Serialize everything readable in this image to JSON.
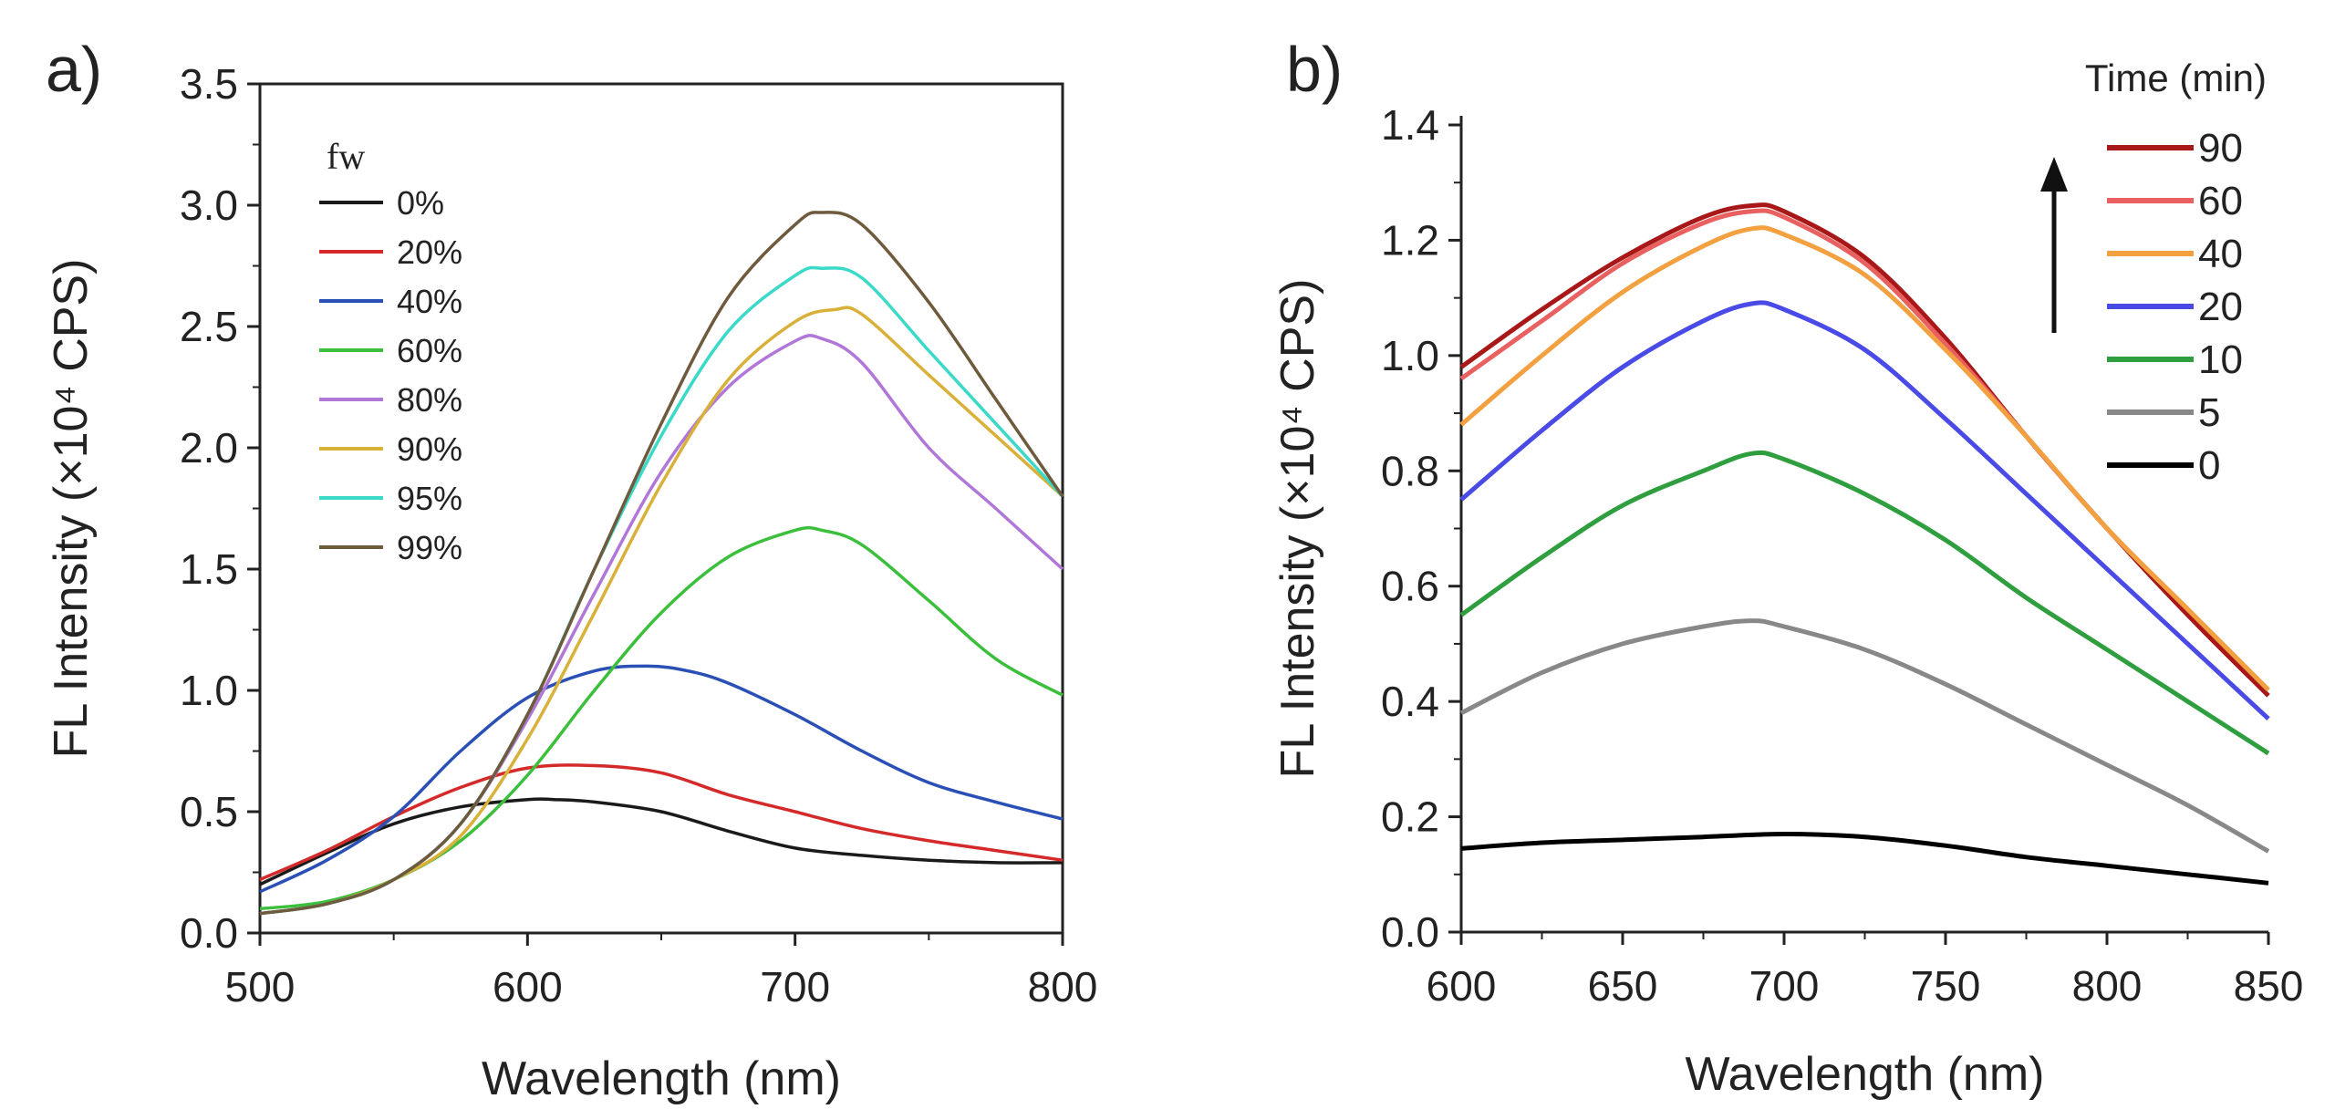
{
  "chart_data": [
    {
      "type": "line",
      "panel_label": "a)",
      "xlabel": "Wavelength (nm)",
      "ylabel": "FL Intensity (×10⁴ CPS)",
      "xlim": [
        500,
        800
      ],
      "ylim": [
        0,
        3.5
      ],
      "xticks": [
        500,
        600,
        700,
        800
      ],
      "yticks": [
        0.0,
        0.5,
        1.0,
        1.5,
        2.0,
        2.5,
        3.0,
        3.5
      ],
      "xtick_labels": [
        "500",
        "600",
        "700",
        "800"
      ],
      "ytick_labels": [
        "0.0",
        "0.5",
        "1.0",
        "1.5",
        "2.0",
        "2.5",
        "3.0",
        "3.5"
      ],
      "legend_title": "fw",
      "legend_position": "top-left",
      "series": [
        {
          "name": "0%",
          "color": "#1a1a1a",
          "x": [
            500,
            525,
            550,
            575,
            600,
            610,
            625,
            650,
            675,
            700,
            725,
            750,
            775,
            800
          ],
          "y": [
            0.2,
            0.33,
            0.45,
            0.52,
            0.55,
            0.55,
            0.54,
            0.5,
            0.42,
            0.35,
            0.32,
            0.3,
            0.29,
            0.29
          ]
        },
        {
          "name": "20%",
          "color": "#d42a2a",
          "x": [
            500,
            525,
            550,
            575,
            600,
            625,
            650,
            675,
            700,
            725,
            750,
            775,
            800
          ],
          "y": [
            0.22,
            0.34,
            0.48,
            0.6,
            0.68,
            0.69,
            0.66,
            0.57,
            0.5,
            0.43,
            0.38,
            0.34,
            0.3
          ]
        },
        {
          "name": "40%",
          "color": "#2a4fb5",
          "x": [
            500,
            525,
            550,
            575,
            600,
            625,
            645,
            660,
            675,
            700,
            725,
            750,
            775,
            800
          ],
          "y": [
            0.17,
            0.3,
            0.48,
            0.75,
            0.97,
            1.08,
            1.1,
            1.08,
            1.03,
            0.9,
            0.75,
            0.62,
            0.54,
            0.47
          ]
        },
        {
          "name": "60%",
          "color": "#3cbf3c",
          "x": [
            500,
            525,
            550,
            575,
            600,
            625,
            650,
            675,
            700,
            710,
            725,
            750,
            775,
            800
          ],
          "y": [
            0.1,
            0.13,
            0.22,
            0.38,
            0.65,
            1.0,
            1.32,
            1.55,
            1.66,
            1.66,
            1.6,
            1.37,
            1.13,
            0.98
          ]
        },
        {
          "name": "80%",
          "color": "#b077d8",
          "x": [
            500,
            525,
            550,
            575,
            600,
            625,
            650,
            675,
            700,
            710,
            725,
            750,
            775,
            800
          ],
          "y": [
            0.08,
            0.12,
            0.22,
            0.45,
            0.88,
            1.4,
            1.9,
            2.25,
            2.44,
            2.45,
            2.35,
            2.0,
            1.75,
            1.5
          ]
        },
        {
          "name": "90%",
          "color": "#d9b13a",
          "x": [
            500,
            525,
            550,
            575,
            600,
            625,
            650,
            675,
            700,
            715,
            725,
            750,
            775,
            800
          ],
          "y": [
            0.08,
            0.12,
            0.22,
            0.4,
            0.8,
            1.32,
            1.85,
            2.28,
            2.52,
            2.57,
            2.55,
            2.3,
            2.05,
            1.8
          ]
        },
        {
          "name": "95%",
          "color": "#3ad9c8",
          "x": [
            500,
            525,
            550,
            575,
            600,
            625,
            650,
            675,
            700,
            710,
            725,
            750,
            775,
            800
          ],
          "y": [
            0.08,
            0.12,
            0.22,
            0.45,
            0.9,
            1.5,
            2.05,
            2.48,
            2.71,
            2.74,
            2.7,
            2.4,
            2.1,
            1.8
          ]
        },
        {
          "name": "99%",
          "color": "#6e5a3c",
          "x": [
            500,
            525,
            550,
            575,
            600,
            625,
            650,
            675,
            700,
            710,
            725,
            750,
            775,
            800
          ],
          "y": [
            0.08,
            0.12,
            0.22,
            0.45,
            0.9,
            1.5,
            2.1,
            2.62,
            2.92,
            2.97,
            2.92,
            2.6,
            2.2,
            1.8
          ]
        }
      ]
    },
    {
      "type": "line",
      "panel_label": "b)",
      "xlabel": "Wavelength (nm)",
      "ylabel": "FL Intensity (×10⁴ CPS)",
      "xlim": [
        600,
        850
      ],
      "ylim": [
        0,
        1.4
      ],
      "xticks": [
        600,
        650,
        700,
        750,
        800,
        850
      ],
      "yticks": [
        0.0,
        0.2,
        0.4,
        0.6,
        0.8,
        1.0,
        1.2,
        1.4
      ],
      "xtick_labels": [
        "600",
        "650",
        "700",
        "750",
        "800",
        "850"
      ],
      "ytick_labels": [
        "0.0",
        "0.2",
        "0.4",
        "0.6",
        "0.8",
        "1.0",
        "1.2",
        "1.4"
      ],
      "legend_title": "Time (min)",
      "legend_position": "top-right",
      "series": [
        {
          "name": "90",
          "color": "#a81818",
          "x": [
            600,
            625,
            650,
            675,
            690,
            700,
            725,
            750,
            775,
            800,
            825,
            850
          ],
          "y": [
            0.98,
            1.08,
            1.17,
            1.24,
            1.26,
            1.25,
            1.17,
            1.03,
            0.86,
            0.7,
            0.55,
            0.41
          ]
        },
        {
          "name": "60",
          "color": "#e86060",
          "x": [
            600,
            625,
            650,
            675,
            690,
            700,
            725,
            750,
            775,
            800,
            825,
            850
          ],
          "y": [
            0.96,
            1.06,
            1.16,
            1.23,
            1.25,
            1.24,
            1.16,
            1.02,
            0.86,
            0.7,
            0.56,
            0.42
          ]
        },
        {
          "name": "40",
          "color": "#f2a040",
          "x": [
            600,
            625,
            650,
            675,
            690,
            700,
            725,
            750,
            775,
            800,
            825,
            850
          ],
          "y": [
            0.88,
            1.0,
            1.11,
            1.19,
            1.22,
            1.21,
            1.14,
            1.01,
            0.86,
            0.7,
            0.56,
            0.42
          ]
        },
        {
          "name": "20",
          "color": "#4a4ae6",
          "x": [
            600,
            625,
            650,
            675,
            690,
            700,
            725,
            750,
            775,
            800,
            825,
            850
          ],
          "y": [
            0.75,
            0.87,
            0.98,
            1.06,
            1.09,
            1.08,
            1.01,
            0.89,
            0.76,
            0.63,
            0.5,
            0.37
          ]
        },
        {
          "name": "10",
          "color": "#2e9e3e",
          "x": [
            600,
            625,
            650,
            675,
            690,
            700,
            725,
            750,
            775,
            800,
            825,
            850
          ],
          "y": [
            0.55,
            0.65,
            0.74,
            0.8,
            0.83,
            0.82,
            0.76,
            0.68,
            0.58,
            0.49,
            0.4,
            0.31
          ]
        },
        {
          "name": "5",
          "color": "#888888",
          "x": [
            600,
            625,
            650,
            675,
            690,
            700,
            725,
            750,
            775,
            800,
            825,
            850
          ],
          "y": [
            0.38,
            0.45,
            0.5,
            0.53,
            0.54,
            0.53,
            0.49,
            0.43,
            0.36,
            0.29,
            0.22,
            0.14
          ]
        },
        {
          "name": "0",
          "color": "#000000",
          "x": [
            600,
            625,
            650,
            675,
            700,
            725,
            750,
            775,
            800,
            825,
            850
          ],
          "y": [
            0.145,
            0.155,
            0.16,
            0.165,
            0.17,
            0.165,
            0.15,
            0.13,
            0.115,
            0.1,
            0.085
          ]
        }
      ],
      "arrow_annotation": "increasing time (upward arrow)"
    }
  ]
}
